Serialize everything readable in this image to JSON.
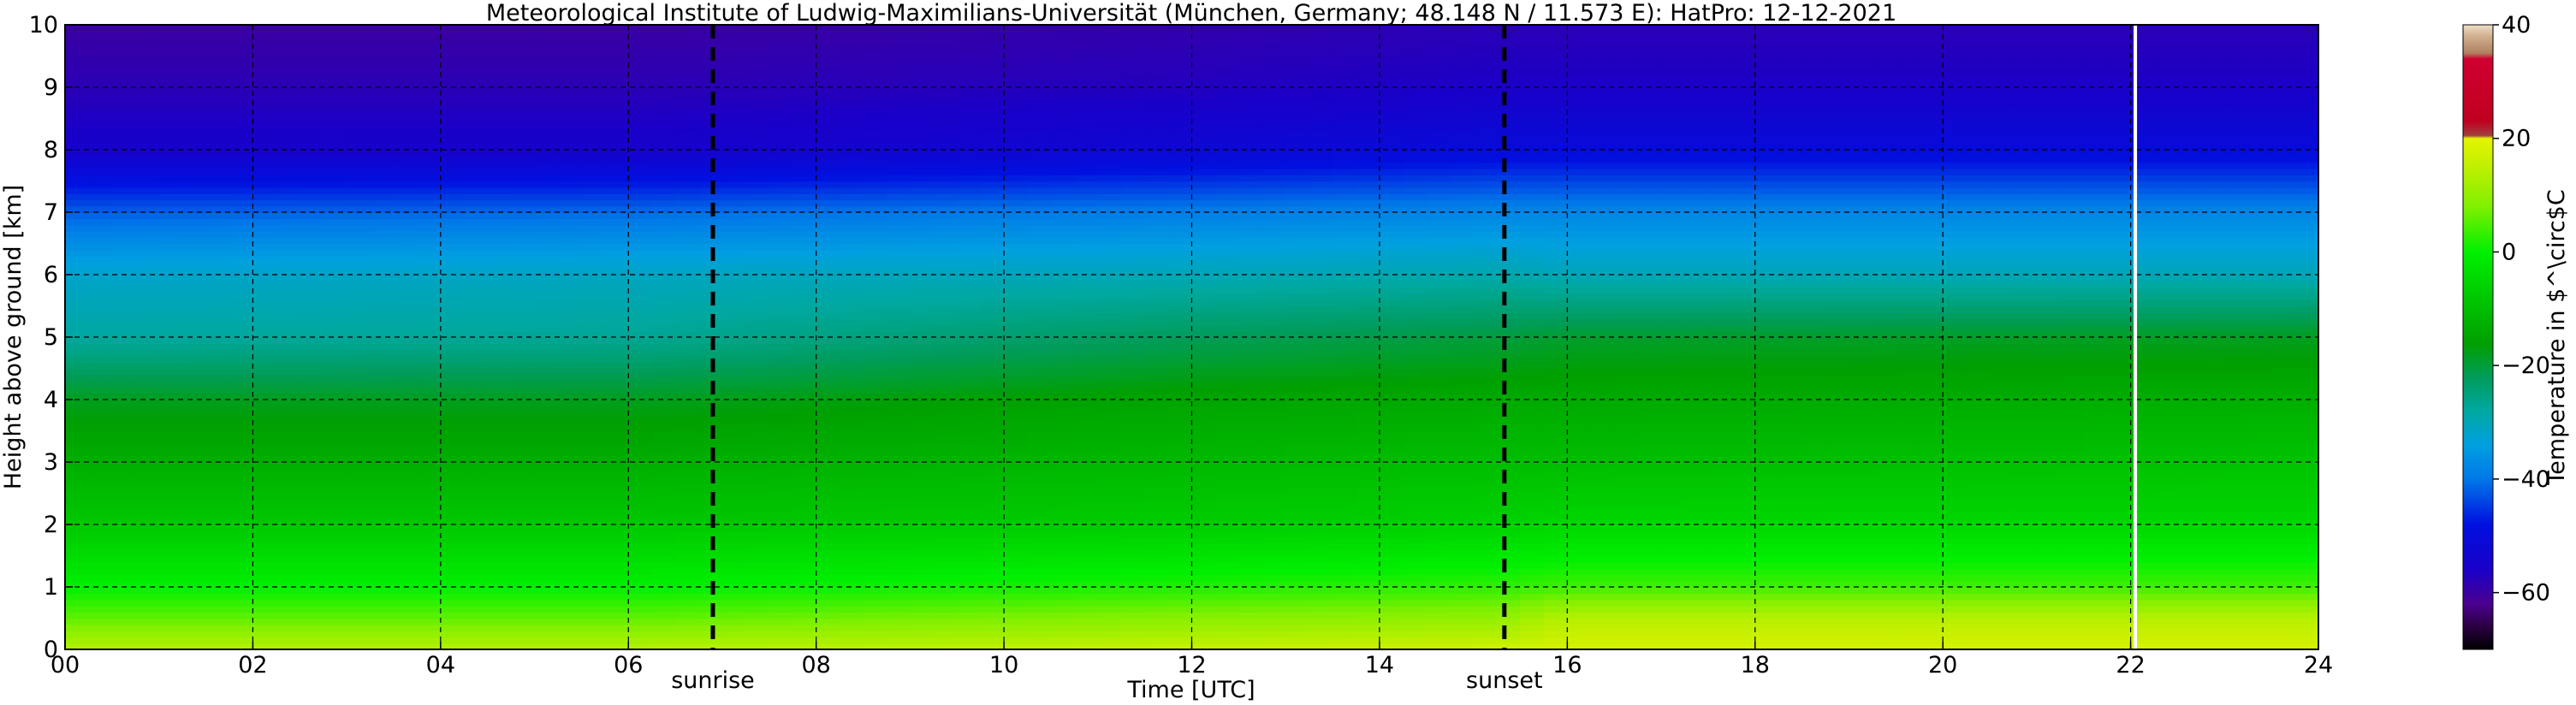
{
  "chart_data": {
    "type": "heatmap",
    "title": "Meteorological Institute of Ludwig-Maximilians-Universität (München, Germany; 48.148 N / 11.573 E):    HatPro: 12-12-2021",
    "xlabel": "Time [UTC]",
    "ylabel": "Height above ground [km]",
    "xlim": [
      0,
      24
    ],
    "ylim": [
      0,
      10
    ],
    "x_ticks": [
      "00",
      "02",
      "04",
      "06",
      "08",
      "10",
      "12",
      "14",
      "16",
      "18",
      "20",
      "22",
      "24"
    ],
    "y_ticks": [
      "0",
      "1",
      "2",
      "3",
      "4",
      "5",
      "6",
      "7",
      "8",
      "9",
      "10"
    ],
    "grid": true,
    "colorbar": {
      "label": "Temperature in $^\\circ$C",
      "range": [
        -70,
        40
      ],
      "ticks": [
        "40",
        "20",
        "0",
        "−20",
        "−40",
        "−60"
      ],
      "tick_values": [
        40,
        20,
        0,
        -20,
        -40,
        -60
      ],
      "colors": [
        {
          "t": -70,
          "color": "#000000"
        },
        {
          "t": -66,
          "color": "#2a0040"
        },
        {
          "t": -62,
          "color": "#4a0090"
        },
        {
          "t": -56,
          "color": "#1a00c8"
        },
        {
          "t": -48,
          "color": "#0010e0"
        },
        {
          "t": -40,
          "color": "#0078e8"
        },
        {
          "t": -34,
          "color": "#00a0e0"
        },
        {
          "t": -28,
          "color": "#00a8a0"
        },
        {
          "t": -22,
          "color": "#009c5a"
        },
        {
          "t": -16,
          "color": "#00a000"
        },
        {
          "t": -8,
          "color": "#00c800"
        },
        {
          "t": 0,
          "color": "#00f000"
        },
        {
          "t": 8,
          "color": "#80f000"
        },
        {
          "t": 16,
          "color": "#c8f000"
        },
        {
          "t": 20,
          "color": "#e4f400"
        },
        {
          "t": 20.5,
          "color": "#a04040"
        },
        {
          "t": 23,
          "color": "#c00020"
        },
        {
          "t": 34,
          "color": "#d00030"
        },
        {
          "t": 35,
          "color": "#b08060"
        },
        {
          "t": 38,
          "color": "#d0b090"
        },
        {
          "t": 40,
          "color": "#f0e0c8"
        }
      ]
    },
    "event_lines": [
      {
        "label": "sunrise",
        "x": 6.9
      },
      {
        "label": "sunset",
        "x": 15.33
      }
    ],
    "missing_data": [
      {
        "x": 22.05
      }
    ],
    "temperature_profiles": [
      {
        "time": 0,
        "heights_km": [
          0,
          0.5,
          1,
          2,
          3,
          4,
          5,
          6,
          7,
          8,
          9,
          10
        ],
        "temps": [
          14,
          6,
          0,
          -8,
          -13,
          -18,
          -28,
          -32,
          -42,
          -55,
          -58,
          -60
        ]
      },
      {
        "time": 6,
        "heights_km": [
          0,
          0.5,
          1,
          2,
          3,
          4,
          5,
          6,
          7,
          8,
          9,
          10
        ],
        "temps": [
          14,
          6,
          0,
          -8,
          -13,
          -18,
          -27,
          -31,
          -41,
          -55,
          -58,
          -60
        ]
      },
      {
        "time": 12,
        "heights_km": [
          0,
          0.5,
          1,
          2,
          3,
          4,
          5,
          6,
          7,
          8,
          9,
          10
        ],
        "temps": [
          16,
          9,
          2,
          -7,
          -11,
          -15,
          -22,
          -30,
          -39,
          -52,
          -57,
          -59
        ]
      },
      {
        "time": 15.3,
        "heights_km": [
          0,
          0.5,
          1,
          2,
          3,
          4,
          5,
          6,
          7,
          8,
          9,
          10
        ],
        "temps": [
          17,
          10,
          3,
          -6,
          -10,
          -14,
          -20,
          -29,
          -38,
          -50,
          -56,
          -58
        ]
      },
      {
        "time": 16,
        "heights_km": [
          0,
          0.5,
          1,
          2,
          3,
          4,
          5,
          6,
          7,
          8,
          9,
          10
        ],
        "temps": [
          18,
          14,
          4,
          -5,
          -10,
          -14,
          -19,
          -30,
          -38,
          -50,
          -56,
          -58
        ]
      },
      {
        "time": 24,
        "heights_km": [
          0,
          0.5,
          1,
          2,
          3,
          4,
          5,
          6,
          7,
          8,
          9,
          10
        ],
        "temps": [
          18,
          14,
          4,
          -5,
          -9,
          -13,
          -18,
          -30,
          -38,
          -50,
          -56,
          -58
        ]
      }
    ]
  }
}
